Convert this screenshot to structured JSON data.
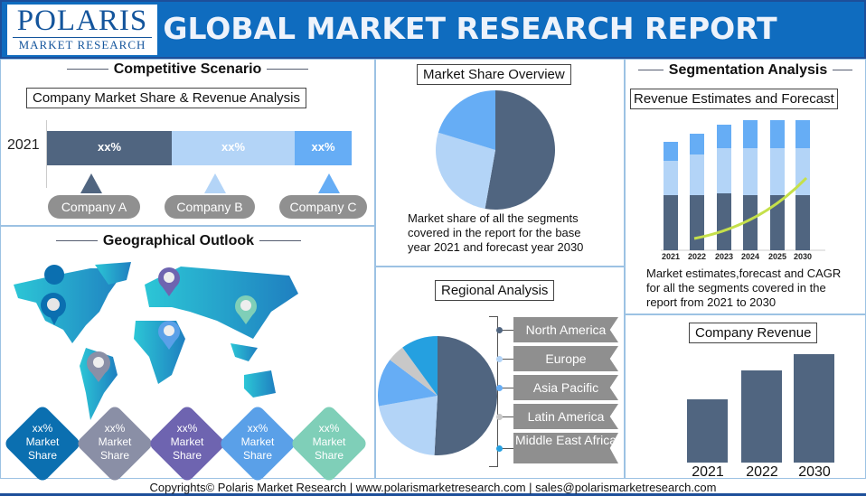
{
  "header": {
    "logo_main": "POLARIS",
    "logo_sub": "MARKET RESEARCH",
    "title": "GLOBAL MARKET RESEARCH REPORT",
    "bg_color": "#0f6cbf"
  },
  "competitive": {
    "heading": "Competitive Scenario",
    "subheading": "Company Market Share & Revenue Analysis",
    "year": "2021",
    "segments": [
      {
        "label": "xx%",
        "color": "#506580"
      },
      {
        "label": "xx%",
        "color": "#b3d4f7"
      },
      {
        "label": "xx%",
        "color": "#66adf5"
      }
    ],
    "companies": [
      "Company A",
      "Company B",
      "Company C"
    ]
  },
  "market_share": {
    "heading": "Market Share Overview",
    "description": "Market share of all the segments covered in the report for the base year 2021 and forecast year 2030"
  },
  "segmentation": {
    "heading": "Segmentation Analysis",
    "subheading": "Revenue Estimates and Forecast",
    "years": [
      "2021",
      "2022",
      "2023",
      "2024",
      "2025",
      "2030"
    ],
    "description": "Market estimates,forecast and CAGR for all the segments covered in the report from 2021 to 2030",
    "trend_color": "#c5e04a"
  },
  "geo": {
    "heading": "Geographical Outlook",
    "markers": [
      {
        "line1": "xx%",
        "line2": "Market",
        "line3": "Share",
        "color": "#0b6fb0"
      },
      {
        "line1": "xx%",
        "line2": "Market",
        "line3": "Share",
        "color": "#8a8fa6"
      },
      {
        "line1": "xx%",
        "line2": "Market",
        "line3": "Share",
        "color": "#6e64b0"
      },
      {
        "line1": "xx%",
        "line2": "Market",
        "line3": "Share",
        "color": "#5aa0e8"
      },
      {
        "line1": "xx%",
        "line2": "Market",
        "line3": "Share",
        "color": "#7fcfb8"
      }
    ]
  },
  "regional": {
    "heading": "Regional Analysis",
    "regions": [
      "North America",
      "Europe",
      "Asia Pacific",
      "Latin America",
      "Middle East Africa"
    ]
  },
  "company_revenue": {
    "heading": "Company Revenue",
    "years": [
      "2021",
      "2022",
      "2030"
    ]
  },
  "footer": {
    "text": "Copyrights© Polaris Market Research | www.polarismarketresearch.com | sales@polarismarketresearch.com"
  }
}
